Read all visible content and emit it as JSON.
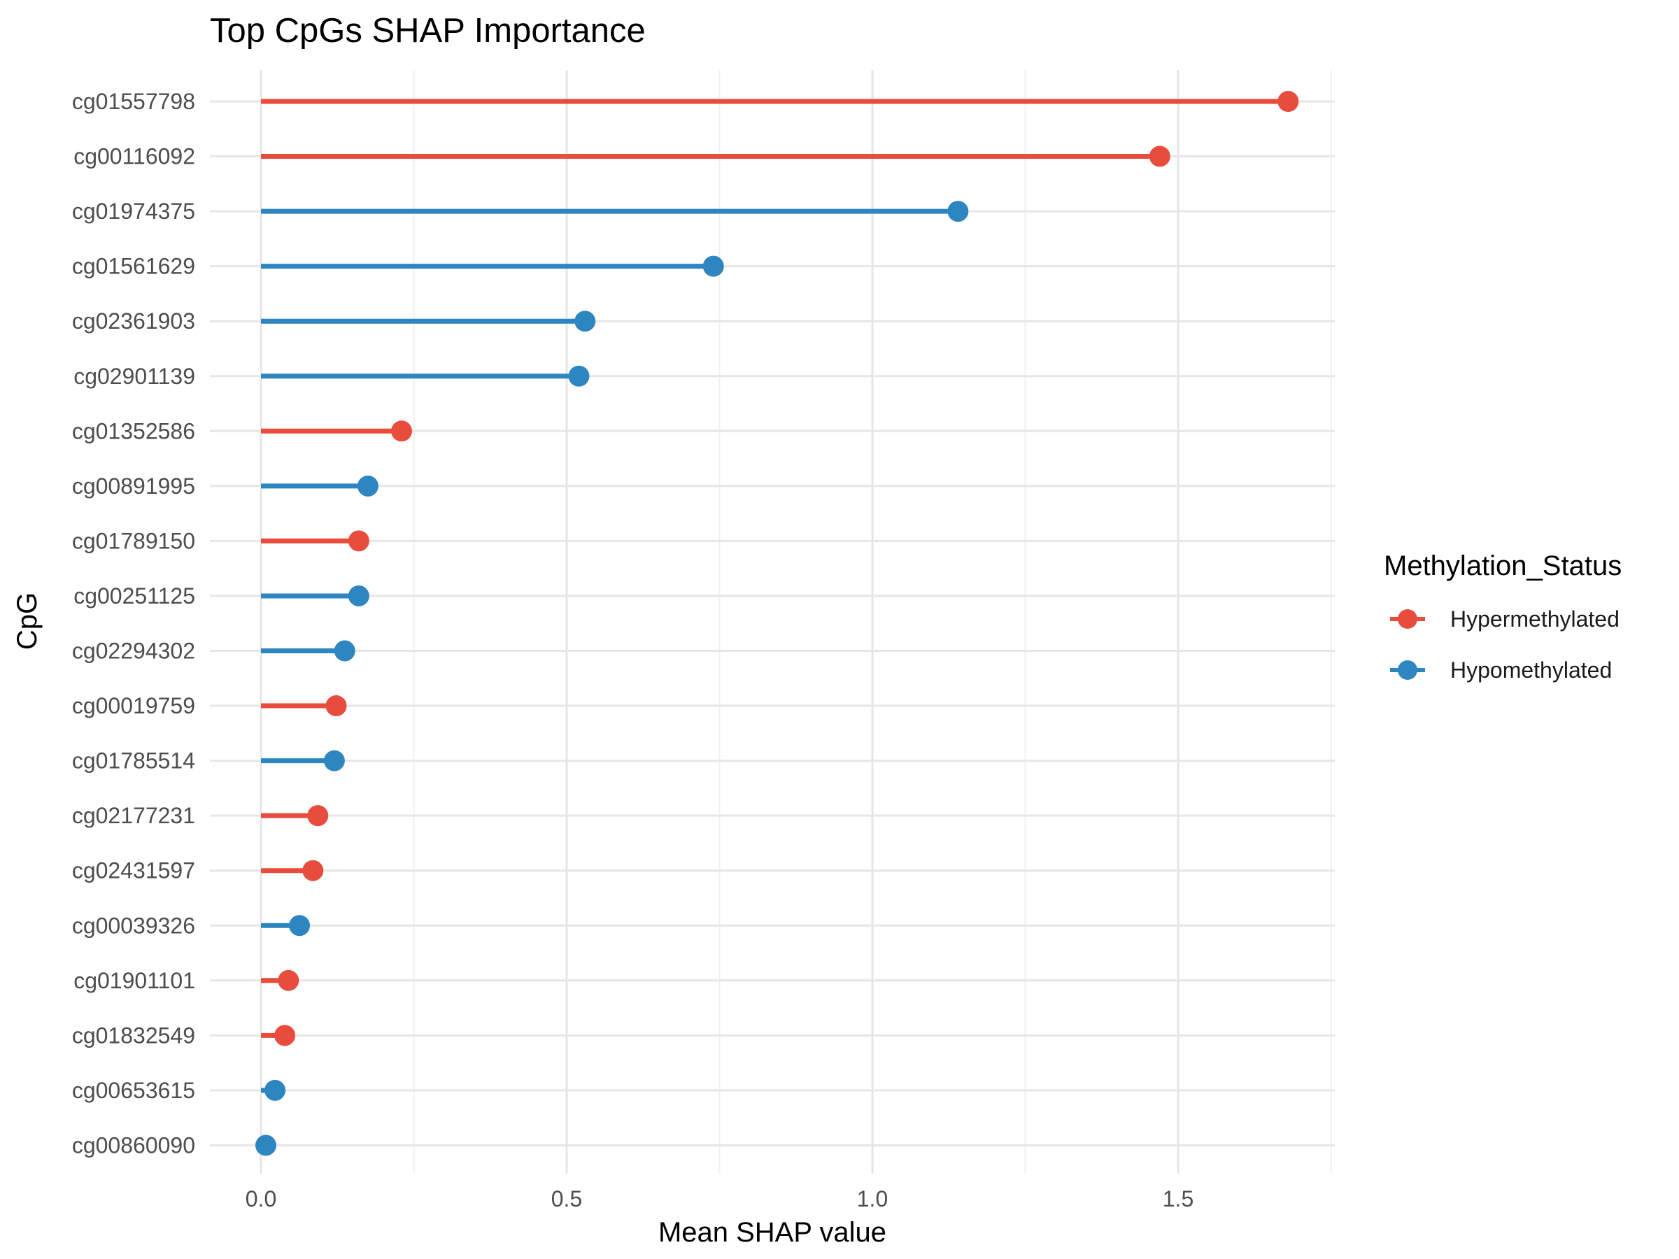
{
  "chart_data": {
    "type": "lollipop",
    "title": "Top CpGs SHAP Importance",
    "xlabel": "Mean SHAP value",
    "ylabel": "CpG",
    "xlim": [
      0,
      1.75
    ],
    "xticks": [
      {
        "value": 0.0,
        "label": "0.0"
      },
      {
        "value": 0.5,
        "label": "0.5"
      },
      {
        "value": 1.0,
        "label": "1.0"
      },
      {
        "value": 1.5,
        "label": "1.5"
      }
    ],
    "grid": true,
    "legend": {
      "title": "Methylation_Status",
      "position": "right",
      "entries": [
        {
          "name": "Hypermethylated",
          "color": "#E74C3C"
        },
        {
          "name": "Hypomethylated",
          "color": "#2E86C1"
        }
      ]
    },
    "points": [
      {
        "cpg": "cg01557798",
        "value": 1.68,
        "status": "Hypermethylated"
      },
      {
        "cpg": "cg00116092",
        "value": 1.47,
        "status": "Hypermethylated"
      },
      {
        "cpg": "cg01974375",
        "value": 1.14,
        "status": "Hypomethylated"
      },
      {
        "cpg": "cg01561629",
        "value": 0.74,
        "status": "Hypomethylated"
      },
      {
        "cpg": "cg02361903",
        "value": 0.53,
        "status": "Hypomethylated"
      },
      {
        "cpg": "cg02901139",
        "value": 0.52,
        "status": "Hypomethylated"
      },
      {
        "cpg": "cg01352586",
        "value": 0.23,
        "status": "Hypermethylated"
      },
      {
        "cpg": "cg00891995",
        "value": 0.175,
        "status": "Hypomethylated"
      },
      {
        "cpg": "cg01789150",
        "value": 0.16,
        "status": "Hypermethylated"
      },
      {
        "cpg": "cg00251125",
        "value": 0.16,
        "status": "Hypomethylated"
      },
      {
        "cpg": "cg02294302",
        "value": 0.137,
        "status": "Hypomethylated"
      },
      {
        "cpg": "cg00019759",
        "value": 0.123,
        "status": "Hypermethylated"
      },
      {
        "cpg": "cg01785514",
        "value": 0.12,
        "status": "Hypomethylated"
      },
      {
        "cpg": "cg02177231",
        "value": 0.093,
        "status": "Hypermethylated"
      },
      {
        "cpg": "cg02431597",
        "value": 0.085,
        "status": "Hypermethylated"
      },
      {
        "cpg": "cg00039326",
        "value": 0.063,
        "status": "Hypomethylated"
      },
      {
        "cpg": "cg01901101",
        "value": 0.045,
        "status": "Hypermethylated"
      },
      {
        "cpg": "cg01832549",
        "value": 0.039,
        "status": "Hypermethylated"
      },
      {
        "cpg": "cg00653615",
        "value": 0.023,
        "status": "Hypomethylated"
      },
      {
        "cpg": "cg00860090",
        "value": 0.008,
        "status": "Hypomethylated"
      }
    ]
  }
}
